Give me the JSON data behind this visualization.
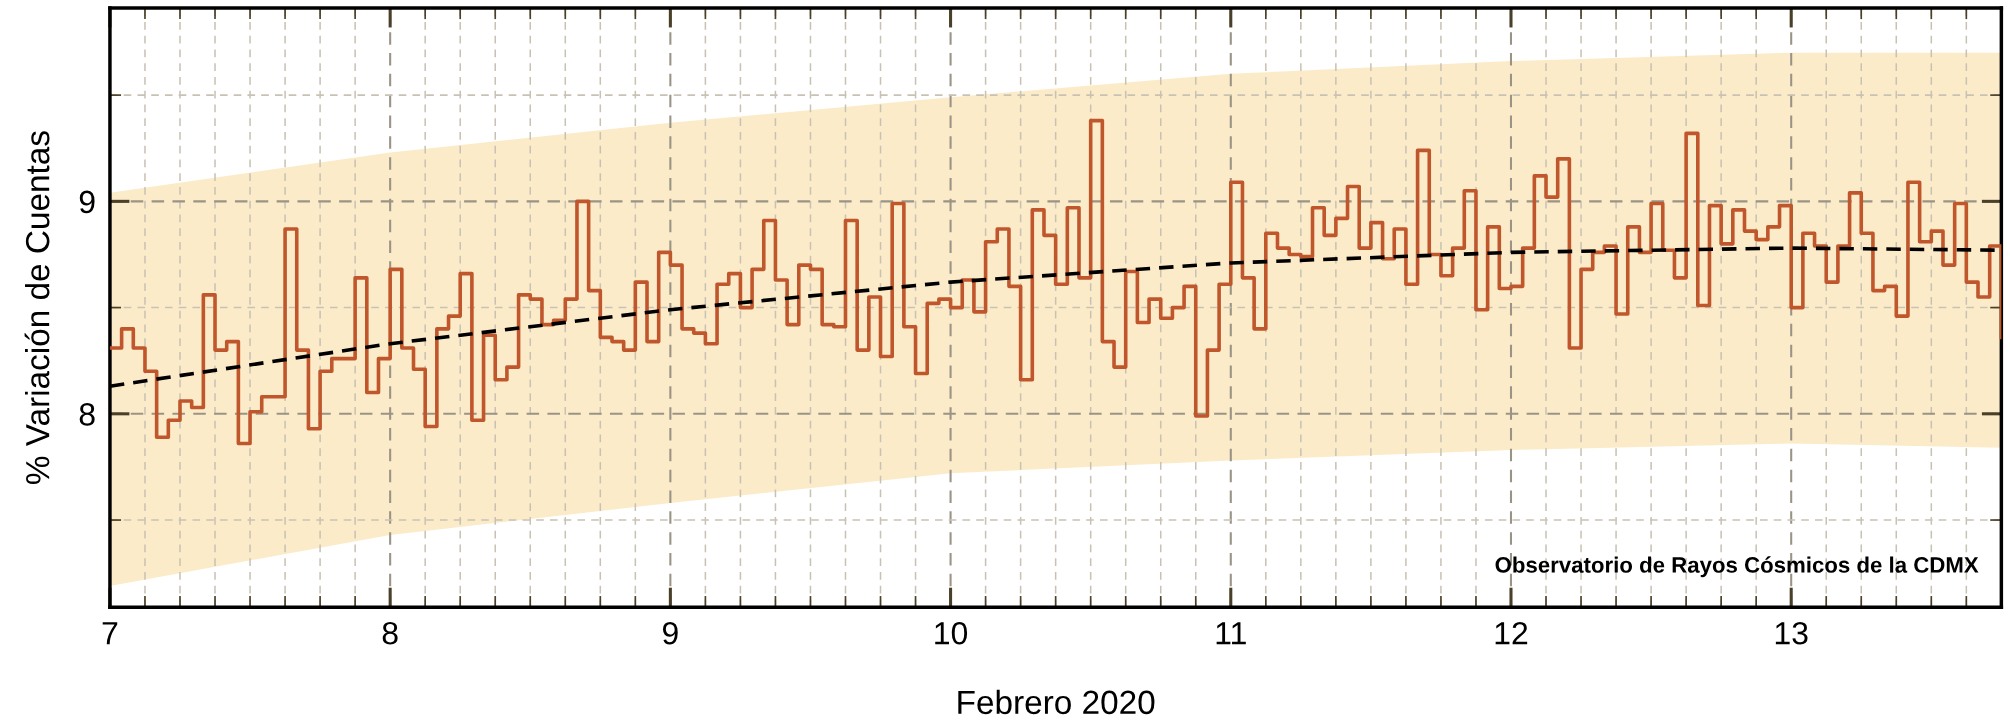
{
  "chart_data": {
    "type": "step",
    "xlabel": "Febrero 2020",
    "ylabel": "% Variación de Cuentas",
    "annotations": [
      "Observatorio de Rayos Cósmicos de la CDMX"
    ],
    "xlim": [
      "2020-02-07T00:00",
      "2020-02-13T18:00"
    ],
    "ylim": [
      7.09,
      9.91
    ],
    "xticks": [
      {
        "value": "2020-02-07",
        "label": "7"
      },
      {
        "value": "2020-02-08",
        "label": "8"
      },
      {
        "value": "2020-02-09",
        "label": "9"
      },
      {
        "value": "2020-02-10",
        "label": "10"
      },
      {
        "value": "2020-02-11",
        "label": "11"
      },
      {
        "value": "2020-02-12",
        "label": "12"
      },
      {
        "value": "2020-02-13",
        "label": "13"
      },
      {
        "value": "2020-02-07T03:00",
        "label": null
      },
      {
        "value": "2020-02-07T06:00",
        "label": null
      },
      {
        "value": "2020-02-07T09:00",
        "label": null
      },
      {
        "value": "2020-02-07T12:00",
        "label": null
      },
      {
        "value": "2020-02-07T15:00",
        "label": null
      },
      {
        "value": "2020-02-07T18:00",
        "label": null
      },
      {
        "value": "2020-02-07T21:00",
        "label": null
      },
      {
        "value": "2020-02-08T03:00",
        "label": null
      },
      {
        "value": "2020-02-08T06:00",
        "label": null
      },
      {
        "value": "2020-02-08T09:00",
        "label": null
      },
      {
        "value": "2020-02-08T12:00",
        "label": null
      },
      {
        "value": "2020-02-08T15:00",
        "label": null
      },
      {
        "value": "2020-02-08T18:00",
        "label": null
      },
      {
        "value": "2020-02-08T21:00",
        "label": null
      },
      {
        "value": "2020-02-09T03:00",
        "label": null
      },
      {
        "value": "2020-02-09T06:00",
        "label": null
      },
      {
        "value": "2020-02-09T09:00",
        "label": null
      },
      {
        "value": "2020-02-09T12:00",
        "label": null
      },
      {
        "value": "2020-02-09T15:00",
        "label": null
      },
      {
        "value": "2020-02-09T18:00",
        "label": null
      },
      {
        "value": "2020-02-09T21:00",
        "label": null
      },
      {
        "value": "2020-02-10T03:00",
        "label": null
      },
      {
        "value": "2020-02-10T06:00",
        "label": null
      },
      {
        "value": "2020-02-10T09:00",
        "label": null
      },
      {
        "value": "2020-02-10T12:00",
        "label": null
      },
      {
        "value": "2020-02-10T15:00",
        "label": null
      },
      {
        "value": "2020-02-10T18:00",
        "label": null
      },
      {
        "value": "2020-02-10T21:00",
        "label": null
      },
      {
        "value": "2020-02-11T03:00",
        "label": null
      },
      {
        "value": "2020-02-11T06:00",
        "label": null
      },
      {
        "value": "2020-02-11T09:00",
        "label": null
      },
      {
        "value": "2020-02-11T12:00",
        "label": null
      },
      {
        "value": "2020-02-11T15:00",
        "label": null
      },
      {
        "value": "2020-02-11T18:00",
        "label": null
      },
      {
        "value": "2020-02-11T21:00",
        "label": null
      },
      {
        "value": "2020-02-12T03:00",
        "label": null
      },
      {
        "value": "2020-02-12T06:00",
        "label": null
      },
      {
        "value": "2020-02-12T09:00",
        "label": null
      },
      {
        "value": "2020-02-12T12:00",
        "label": null
      },
      {
        "value": "2020-02-12T15:00",
        "label": null
      },
      {
        "value": "2020-02-12T18:00",
        "label": null
      },
      {
        "value": "2020-02-12T21:00",
        "label": null
      },
      {
        "value": "2020-02-13T03:00",
        "label": null
      },
      {
        "value": "2020-02-13T06:00",
        "label": null
      },
      {
        "value": "2020-02-13T09:00",
        "label": null
      },
      {
        "value": "2020-02-13T12:00",
        "label": null
      },
      {
        "value": "2020-02-13T15:00",
        "label": null
      }
    ],
    "yticks": [
      {
        "value": 7.5,
        "label": null
      },
      8,
      {
        "value": 8.5,
        "label": null
      },
      9,
      {
        "value": 9.5,
        "label": null
      }
    ],
    "grid": true,
    "series": [
      {
        "color": "#c0562c",
        "x": [
          "2020-02-07T00:00",
          "2020-02-07T01:00",
          "2020-02-07T02:00",
          "2020-02-07T03:00",
          "2020-02-07T04:00",
          "2020-02-07T05:00",
          "2020-02-07T06:00",
          "2020-02-07T07:00",
          "2020-02-07T08:00",
          "2020-02-07T09:00",
          "2020-02-07T10:00",
          "2020-02-07T11:00",
          "2020-02-07T12:00",
          "2020-02-07T13:00",
          "2020-02-07T14:00",
          "2020-02-07T15:00",
          "2020-02-07T16:00",
          "2020-02-07T17:00",
          "2020-02-07T18:00",
          "2020-02-07T19:00",
          "2020-02-07T20:00",
          "2020-02-07T21:00",
          "2020-02-07T22:00",
          "2020-02-07T23:00",
          "2020-02-08T00:00",
          "2020-02-08T01:00",
          "2020-02-08T02:00",
          "2020-02-08T03:00",
          "2020-02-08T04:00",
          "2020-02-08T05:00",
          "2020-02-08T06:00",
          "2020-02-08T07:00",
          "2020-02-08T08:00",
          "2020-02-08T09:00",
          "2020-02-08T10:00",
          "2020-02-08T11:00",
          "2020-02-08T12:00",
          "2020-02-08T13:00",
          "2020-02-08T14:00",
          "2020-02-08T15:00",
          "2020-02-08T16:00",
          "2020-02-08T17:00",
          "2020-02-08T18:00",
          "2020-02-08T19:00",
          "2020-02-08T20:00",
          "2020-02-08T21:00",
          "2020-02-08T22:00",
          "2020-02-08T23:00",
          "2020-02-09T00:00",
          "2020-02-09T01:00",
          "2020-02-09T02:00",
          "2020-02-09T03:00",
          "2020-02-09T04:00",
          "2020-02-09T05:00",
          "2020-02-09T06:00",
          "2020-02-09T07:00",
          "2020-02-09T08:00",
          "2020-02-09T09:00",
          "2020-02-09T10:00",
          "2020-02-09T11:00",
          "2020-02-09T12:00",
          "2020-02-09T13:00",
          "2020-02-09T14:00",
          "2020-02-09T15:00",
          "2020-02-09T16:00",
          "2020-02-09T17:00",
          "2020-02-09T18:00",
          "2020-02-09T19:00",
          "2020-02-09T20:00",
          "2020-02-09T21:00",
          "2020-02-09T22:00",
          "2020-02-09T23:00",
          "2020-02-10T00:00",
          "2020-02-10T01:00",
          "2020-02-10T02:00",
          "2020-02-10T03:00",
          "2020-02-10T04:00",
          "2020-02-10T05:00",
          "2020-02-10T06:00",
          "2020-02-10T07:00",
          "2020-02-10T08:00",
          "2020-02-10T09:00",
          "2020-02-10T10:00",
          "2020-02-10T11:00",
          "2020-02-10T12:00",
          "2020-02-10T13:00",
          "2020-02-10T14:00",
          "2020-02-10T15:00",
          "2020-02-10T16:00",
          "2020-02-10T17:00",
          "2020-02-10T18:00",
          "2020-02-10T19:00",
          "2020-02-10T20:00",
          "2020-02-10T21:00",
          "2020-02-10T22:00",
          "2020-02-10T23:00",
          "2020-02-11T00:00",
          "2020-02-11T01:00",
          "2020-02-11T02:00",
          "2020-02-11T03:00",
          "2020-02-11T04:00",
          "2020-02-11T05:00",
          "2020-02-11T06:00",
          "2020-02-11T07:00",
          "2020-02-11T08:00",
          "2020-02-11T09:00",
          "2020-02-11T10:00",
          "2020-02-11T11:00",
          "2020-02-11T12:00",
          "2020-02-11T13:00",
          "2020-02-11T14:00",
          "2020-02-11T15:00",
          "2020-02-11T16:00",
          "2020-02-11T17:00",
          "2020-02-11T18:00",
          "2020-02-11T19:00",
          "2020-02-11T20:00",
          "2020-02-11T21:00",
          "2020-02-11T22:00",
          "2020-02-11T23:00",
          "2020-02-12T00:00",
          "2020-02-12T01:00",
          "2020-02-12T02:00",
          "2020-02-12T03:00",
          "2020-02-12T04:00",
          "2020-02-12T05:00",
          "2020-02-12T06:00",
          "2020-02-12T07:00",
          "2020-02-12T08:00",
          "2020-02-12T09:00",
          "2020-02-12T10:00",
          "2020-02-12T11:00",
          "2020-02-12T12:00",
          "2020-02-12T13:00",
          "2020-02-12T14:00",
          "2020-02-12T15:00",
          "2020-02-12T16:00",
          "2020-02-12T17:00",
          "2020-02-12T18:00",
          "2020-02-12T19:00",
          "2020-02-12T20:00",
          "2020-02-12T21:00",
          "2020-02-12T22:00",
          "2020-02-12T23:00",
          "2020-02-13T00:00",
          "2020-02-13T01:00",
          "2020-02-13T02:00",
          "2020-02-13T03:00",
          "2020-02-13T04:00",
          "2020-02-13T05:00",
          "2020-02-13T06:00",
          "2020-02-13T07:00",
          "2020-02-13T08:00",
          "2020-02-13T09:00",
          "2020-02-13T10:00",
          "2020-02-13T11:00",
          "2020-02-13T12:00",
          "2020-02-13T13:00",
          "2020-02-13T14:00",
          "2020-02-13T15:00",
          "2020-02-13T16:00",
          "2020-02-13T17:00",
          "2020-02-13T18:00"
        ],
        "values": [
          8.31,
          8.4,
          8.31,
          8.2,
          7.89,
          7.97,
          8.06,
          8.03,
          8.56,
          8.3,
          8.34,
          7.86,
          8.01,
          8.08,
          8.08,
          8.87,
          8.3,
          7.93,
          8.2,
          8.26,
          8.26,
          8.64,
          8.1,
          8.26,
          8.68,
          8.31,
          8.21,
          7.94,
          8.4,
          8.46,
          8.66,
          7.97,
          8.37,
          8.16,
          8.22,
          8.56,
          8.54,
          8.42,
          8.44,
          8.54,
          9.0,
          8.58,
          8.36,
          8.34,
          8.3,
          8.62,
          8.34,
          8.76,
          8.7,
          8.4,
          8.38,
          8.33,
          8.61,
          8.66,
          8.5,
          8.68,
          8.91,
          8.63,
          8.42,
          8.7,
          8.68,
          8.42,
          8.41,
          8.91,
          8.3,
          8.55,
          8.27,
          8.99,
          8.41,
          8.19,
          8.52,
          8.54,
          8.5,
          8.63,
          8.48,
          8.81,
          8.87,
          8.6,
          8.16,
          8.96,
          8.84,
          8.61,
          8.97,
          8.64,
          9.38,
          8.34,
          8.22,
          8.67,
          8.43,
          8.54,
          8.45,
          8.5,
          8.6,
          7.99,
          8.3,
          8.61,
          9.09,
          8.64,
          8.4,
          8.85,
          8.78,
          8.75,
          8.74,
          8.97,
          8.84,
          8.92,
          9.07,
          8.78,
          8.9,
          8.73,
          8.87,
          8.61,
          9.24,
          8.75,
          8.65,
          8.78,
          9.05,
          8.49,
          8.88,
          8.59,
          8.6,
          8.78,
          9.12,
          9.02,
          9.2,
          8.31,
          8.68,
          8.76,
          8.79,
          8.47,
          8.88,
          8.76,
          8.99,
          8.77,
          8.64,
          9.32,
          8.51,
          8.98,
          8.8,
          8.96,
          8.86,
          8.82,
          8.88,
          8.98,
          8.5,
          8.85,
          8.79,
          8.62,
          8.79,
          9.04,
          8.85,
          8.58,
          8.6,
          8.46,
          9.09,
          8.81,
          8.86,
          8.7,
          8.99,
          8.62,
          8.55,
          8.79,
          8.36
        ]
      },
      {
        "type": "line",
        "color": "#000000",
        "line_style": "dashed",
        "x": [
          "2020-02-07T00:00",
          "2020-02-08T00:00",
          "2020-02-09T00:00",
          "2020-02-10T00:00",
          "2020-02-11T00:00",
          "2020-02-12T00:00",
          "2020-02-13T00:00",
          "2020-02-13T18:00"
        ],
        "values": [
          8.13,
          8.33,
          8.49,
          8.62,
          8.71,
          8.76,
          8.78,
          8.77
        ],
        "lower": [
          7.19,
          7.43,
          7.58,
          7.72,
          7.78,
          7.83,
          7.86,
          7.84
        ],
        "upper": [
          9.04,
          9.23,
          9.37,
          9.49,
          9.6,
          9.66,
          9.7,
          9.7
        ]
      }
    ]
  }
}
